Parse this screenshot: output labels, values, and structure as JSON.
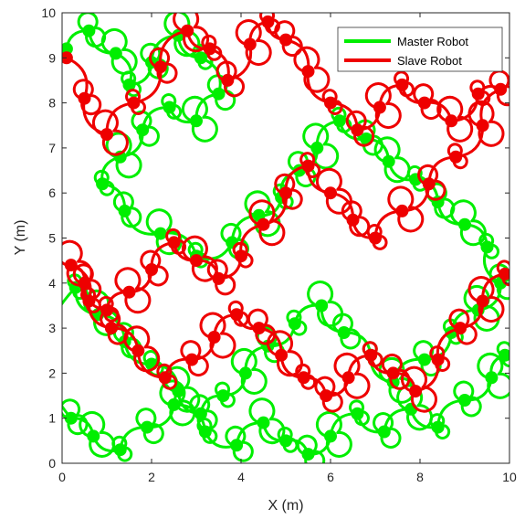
{
  "colors": {
    "master": "#00ee00",
    "slave": "#ee0000",
    "axis": "#262626",
    "legend_border": "#333333"
  },
  "chart_data": {
    "type": "line",
    "xlabel": "X (m)",
    "ylabel": "Y (m)",
    "xlim": [
      0,
      10
    ],
    "ylim": [
      0,
      10
    ],
    "xticks": [
      "0",
      "2",
      "4",
      "6",
      "8",
      "10"
    ],
    "yticks": [
      "0",
      "1",
      "2",
      "3",
      "4",
      "5",
      "6",
      "7",
      "8",
      "9",
      "10"
    ],
    "grid": false,
    "legend_position": "top-right",
    "series": [
      {
        "name": "Master Robot",
        "x": [
          0.1,
          0.6,
          1.2,
          1.5,
          2.0,
          2.6,
          3.1,
          3.5,
          3.0,
          2.4,
          1.8,
          1.3,
          0.9,
          1.4,
          2.2,
          3.0,
          3.8,
          4.4,
          4.9,
          5.3,
          5.7,
          6.2,
          6.8,
          7.3,
          7.9,
          8.4,
          9.0,
          9.5,
          9.8,
          9.3,
          8.7,
          8.1,
          7.4,
          6.9,
          6.3,
          5.8,
          5.2,
          4.6,
          4.1,
          3.6,
          3.1,
          2.6,
          2.0,
          1.4,
          0.8,
          0.3,
          0.2,
          0.7,
          1.3,
          1.9,
          2.5,
          3.2,
          3.9,
          4.5,
          5.0,
          5.5,
          6.0,
          6.6,
          7.2,
          7.8,
          8.4,
          9.0,
          9.6,
          9.9
        ],
        "y": [
          9.2,
          9.6,
          9.1,
          8.4,
          8.9,
          9.5,
          9.0,
          8.2,
          7.6,
          7.9,
          7.4,
          6.8,
          6.2,
          5.6,
          5.1,
          4.6,
          4.9,
          5.5,
          5.9,
          6.5,
          7.0,
          7.6,
          7.2,
          6.7,
          6.3,
          5.8,
          5.3,
          4.8,
          4.0,
          3.4,
          2.9,
          2.3,
          1.8,
          2.4,
          2.9,
          3.5,
          3.1,
          2.6,
          2.0,
          1.5,
          1.1,
          1.6,
          2.2,
          2.7,
          3.3,
          3.9,
          1.0,
          0.6,
          0.3,
          0.8,
          1.3,
          0.7,
          0.4,
          0.9,
          0.5,
          0.2,
          0.6,
          1.1,
          0.7,
          1.2,
          0.8,
          1.4,
          1.9,
          2.4
        ]
      },
      {
        "name": "Slave Robot",
        "x": [
          0.1,
          0.5,
          1.0,
          1.6,
          2.2,
          2.8,
          3.3,
          3.7,
          4.2,
          4.6,
          5.0,
          5.5,
          6.0,
          6.6,
          7.1,
          7.6,
          8.1,
          8.7,
          9.3,
          9.8,
          9.4,
          8.8,
          8.2,
          7.6,
          7.0,
          6.5,
          6.0,
          5.5,
          5.0,
          4.5,
          4.0,
          3.5,
          3.0,
          2.5,
          2.0,
          1.5,
          1.0,
          0.5,
          0.2,
          0.6,
          1.1,
          1.7,
          2.3,
          2.9,
          3.4,
          3.9,
          4.4,
          4.9,
          5.4,
          5.9,
          6.4,
          6.9,
          7.4,
          7.9,
          8.4,
          8.9,
          9.4,
          9.9
        ],
        "y": [
          9.0,
          8.1,
          7.3,
          8.0,
          8.8,
          9.6,
          9.2,
          8.5,
          9.3,
          9.8,
          9.4,
          8.7,
          8.0,
          7.4,
          7.9,
          8.4,
          8.0,
          7.6,
          8.2,
          8.3,
          7.5,
          6.8,
          6.2,
          5.6,
          5.0,
          5.4,
          6.0,
          6.6,
          6.0,
          5.3,
          4.6,
          4.1,
          4.5,
          4.9,
          4.3,
          3.8,
          3.4,
          4.0,
          4.4,
          3.6,
          3.0,
          2.5,
          1.9,
          2.3,
          2.8,
          3.3,
          3.0,
          2.4,
          1.9,
          1.5,
          1.9,
          2.4,
          2.0,
          1.6,
          2.3,
          3.0,
          3.6,
          4.2
        ]
      }
    ]
  }
}
